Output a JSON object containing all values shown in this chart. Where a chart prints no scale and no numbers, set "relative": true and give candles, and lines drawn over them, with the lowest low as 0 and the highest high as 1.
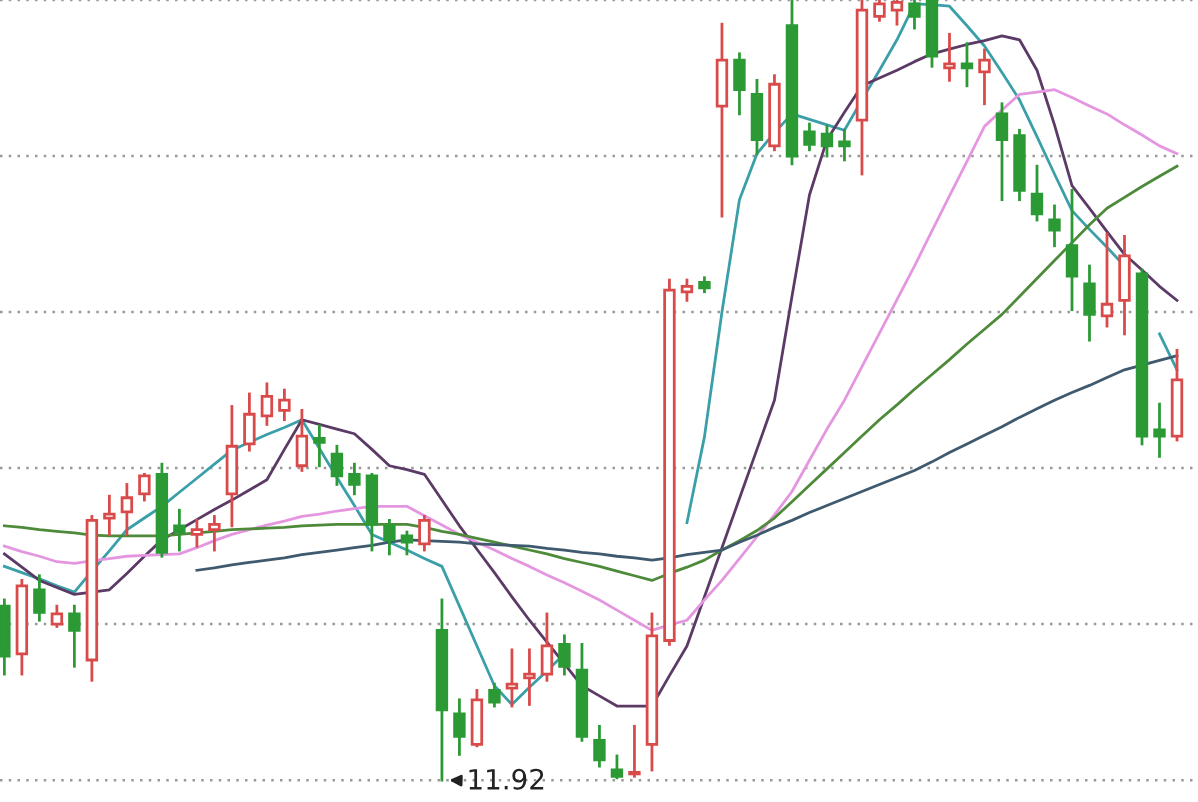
{
  "chart_data": {
    "type": "candlestick",
    "relative": true,
    "grid": "y",
    "legend": false,
    "categories": [
      null,
      null,
      null,
      null,
      null,
      null,
      null,
      null,
      null,
      null,
      null,
      null,
      null,
      null,
      null,
      null,
      null,
      null,
      null,
      null,
      null,
      null,
      null,
      null,
      null,
      null,
      null,
      null,
      null,
      null,
      null,
      null,
      null,
      null,
      null,
      null,
      null,
      null,
      null,
      null,
      null,
      null,
      null,
      null,
      null,
      null,
      null,
      null,
      null,
      null,
      null,
      null,
      null,
      null,
      null,
      null,
      null,
      null,
      null,
      null,
      null,
      null,
      null,
      null,
      null,
      null,
      null,
      null
    ],
    "ohlc": [
      [
        0.223,
        0.231,
        0.136,
        0.159
      ],
      [
        0.162,
        0.256,
        0.136,
        0.249
      ],
      [
        0.244,
        0.262,
        0.205,
        0.215
      ],
      [
        0.2,
        0.223,
        0.197,
        0.213
      ],
      [
        0.213,
        0.223,
        0.146,
        0.192
      ],
      [
        0.154,
        0.338,
        0.128,
        0.333
      ],
      [
        0.336,
        0.364,
        0.315,
        0.341
      ],
      [
        0.344,
        0.379,
        0.315,
        0.362
      ],
      [
        0.367,
        0.392,
        0.359,
        0.39
      ],
      [
        0.392,
        0.405,
        0.287,
        0.292
      ],
      [
        0.326,
        0.346,
        0.295,
        0.318
      ],
      [
        0.315,
        0.333,
        0.3,
        0.321
      ],
      [
        0.321,
        0.338,
        0.295,
        0.328
      ],
      [
        0.367,
        0.479,
        0.326,
        0.428
      ],
      [
        0.431,
        0.495,
        0.423,
        0.469
      ],
      [
        0.467,
        0.508,
        0.456,
        0.492
      ],
      [
        0.474,
        0.5,
        0.462,
        0.487
      ],
      [
        0.403,
        0.474,
        0.397,
        0.441
      ],
      [
        0.438,
        0.454,
        0.403,
        0.433
      ],
      [
        0.418,
        0.428,
        0.379,
        0.39
      ],
      [
        0.392,
        0.405,
        0.367,
        0.379
      ],
      [
        0.39,
        0.392,
        0.295,
        0.328
      ],
      [
        0.326,
        0.333,
        0.29,
        0.308
      ],
      [
        0.313,
        0.318,
        0.29,
        0.305
      ],
      [
        0.303,
        0.338,
        0.295,
        0.333
      ],
      [
        0.192,
        0.231,
        0.0,
        0.09
      ],
      [
        0.085,
        0.103,
        0.033,
        0.056
      ],
      [
        0.046,
        0.115,
        0.044,
        0.103
      ],
      [
        0.115,
        0.123,
        0.095,
        0.1
      ],
      [
        0.118,
        0.167,
        0.095,
        0.123
      ],
      [
        0.131,
        0.167,
        0.097,
        0.136
      ],
      [
        0.136,
        0.213,
        0.128,
        0.172
      ],
      [
        0.174,
        0.185,
        0.136,
        0.146
      ],
      [
        0.141,
        0.174,
        0.051,
        0.056
      ],
      [
        0.051,
        0.069,
        0.018,
        0.026
      ],
      [
        0.013,
        0.031,
        0.003,
        0.005
      ],
      [
        0.008,
        0.069,
        0.005,
        0.01
      ],
      [
        0.046,
        0.213,
        0.013,
        0.185
      ],
      [
        0.179,
        0.641,
        0.174,
        0.628
      ],
      [
        0.626,
        0.641,
        0.615,
        0.633
      ],
      [
        0.638,
        0.644,
        0.626,
        0.631
      ],
      [
        0.864,
        0.969,
        0.723,
        0.923
      ],
      [
        0.923,
        0.931,
        0.854,
        0.885
      ],
      [
        0.879,
        0.897,
        0.803,
        0.821
      ],
      [
        0.813,
        0.903,
        0.808,
        0.892
      ],
      [
        0.967,
        1.0,
        0.79,
        0.8
      ],
      [
        0.831,
        0.841,
        0.808,
        0.815
      ],
      [
        0.828,
        0.838,
        0.8,
        0.813
      ],
      [
        0.818,
        0.833,
        0.795,
        0.813
      ],
      [
        0.846,
        1.0,
        0.777,
        0.987
      ],
      [
        0.979,
        1.0,
        0.974,
        0.995
      ],
      [
        0.987,
        1.0,
        0.969,
        0.997
      ],
      [
        0.995,
        1.0,
        0.964,
        0.979
      ],
      [
        1.0,
        1.0,
        0.915,
        0.928
      ],
      [
        0.913,
        0.956,
        0.897,
        0.918
      ],
      [
        0.918,
        0.944,
        0.89,
        0.913
      ],
      [
        0.908,
        0.936,
        0.867,
        0.923
      ],
      [
        0.854,
        0.867,
        0.744,
        0.821
      ],
      [
        0.826,
        0.833,
        0.744,
        0.756
      ],
      [
        0.751,
        0.787,
        0.718,
        0.726
      ],
      [
        0.718,
        0.736,
        0.685,
        0.705
      ],
      [
        0.685,
        0.756,
        0.603,
        0.646
      ],
      [
        0.636,
        0.659,
        0.564,
        0.597
      ],
      [
        0.595,
        0.7,
        0.582,
        0.61
      ],
      [
        0.615,
        0.697,
        0.572,
        0.672
      ],
      [
        0.649,
        0.654,
        0.431,
        0.441
      ],
      [
        0.449,
        0.482,
        0.415,
        0.441
      ],
      [
        0.441,
        0.551,
        0.436,
        0.513
      ]
    ],
    "series": [
      {
        "type": "line",
        "color": "#3a9fa8",
        "values": [
          0.274,
          0.266,
          0.258,
          0.249,
          0.241,
          0.268,
          0.294,
          0.321,
          0.336,
          0.351,
          0.369,
          0.387,
          0.405,
          0.423,
          0.433,
          0.443,
          0.452,
          0.462,
          0.425,
          0.388,
          0.352,
          0.315,
          0.305,
          0.295,
          0.284,
          0.274,
          0.223,
          0.172,
          0.121,
          0.097,
          0.119,
          0.14,
          0.162,
          null,
          null,
          null,
          null,
          null,
          null,
          0.33,
          0.44,
          0.6,
          0.744,
          0.803,
          0.83,
          0.854,
          0.847,
          0.84,
          0.833,
          0.872,
          0.91,
          0.949,
          0.995,
          0.994,
          0.992,
          0.967,
          0.941,
          0.907,
          0.872,
          0.825,
          0.777,
          0.73,
          0.706,
          0.683,
          0.659,
          null,
          0.572,
          0.526
        ]
      },
      {
        "type": "line",
        "color": "#5b3a66",
        "values": [
          0.29,
          0.273,
          0.256,
          0.247,
          0.238,
          0.241,
          0.244,
          0.265,
          0.287,
          0.308,
          0.321,
          0.334,
          0.347,
          0.359,
          0.372,
          0.385,
          0.424,
          0.462,
          0.456,
          0.45,
          0.444,
          0.424,
          0.403,
          0.398,
          0.392,
          0.359,
          0.326,
          0.296,
          0.266,
          0.235,
          0.205,
          0.177,
          0.149,
          0.121,
          0.108,
          0.095,
          0.095,
          0.095,
          0.134,
          0.172,
          0.235,
          0.298,
          0.361,
          0.424,
          0.487,
          0.62,
          0.75,
          0.821,
          0.856,
          0.89,
          0.9,
          0.91,
          0.921,
          0.931,
          0.937,
          0.943,
          0.948,
          0.954,
          0.949,
          0.91,
          0.84,
          0.762,
          0.733,
          0.703,
          0.674,
          0.654,
          0.633,
          0.615
        ]
      },
      {
        "type": "line",
        "color": "#e596e0",
        "values": [
          0.3,
          0.293,
          0.287,
          0.28,
          0.278,
          0.281,
          0.284,
          0.287,
          0.288,
          0.289,
          0.29,
          0.298,
          0.307,
          0.315,
          0.321,
          0.327,
          0.332,
          0.338,
          0.341,
          0.345,
          0.348,
          0.351,
          0.351,
          0.351,
          0.339,
          0.327,
          0.315,
          0.305,
          0.295,
          0.284,
          0.274,
          0.263,
          0.253,
          0.242,
          0.231,
          0.218,
          0.205,
          0.192,
          0.199,
          0.205,
          0.231,
          0.256,
          0.284,
          0.312,
          0.34,
          0.37,
          0.41,
          0.45,
          0.487,
          0.53,
          0.573,
          0.616,
          0.659,
          0.704,
          0.749,
          0.793,
          0.838,
          0.859,
          0.879,
          0.882,
          0.885,
          0.875,
          0.864,
          0.854,
          0.84,
          0.827,
          0.813,
          0.803
        ]
      },
      {
        "type": "line",
        "color": "#4d8a3a",
        "values": [
          0.326,
          0.324,
          0.321,
          0.319,
          0.317,
          0.314,
          0.313,
          0.313,
          0.313,
          0.313,
          0.315,
          0.317,
          0.319,
          0.321,
          0.322,
          0.323,
          0.324,
          0.326,
          0.327,
          0.328,
          0.328,
          0.328,
          0.328,
          0.328,
          0.324,
          0.319,
          0.315,
          0.31,
          0.305,
          0.3,
          0.295,
          0.29,
          0.284,
          0.279,
          0.274,
          0.268,
          0.262,
          0.256,
          0.265,
          0.273,
          0.282,
          0.295,
          0.307,
          0.32,
          0.336,
          0.357,
          0.378,
          0.399,
          0.42,
          0.441,
          0.462,
          0.481,
          0.501,
          0.52,
          0.539,
          0.559,
          0.578,
          0.597,
          0.62,
          0.643,
          0.666,
          0.689,
          0.712,
          0.733,
          0.747,
          0.761,
          0.774,
          0.787
        ]
      },
      {
        "type": "line",
        "color": "#3f5a6e",
        "values": [
          null,
          null,
          null,
          null,
          null,
          null,
          null,
          null,
          null,
          null,
          null,
          0.269,
          0.272,
          0.276,
          0.279,
          0.282,
          0.285,
          0.289,
          0.292,
          0.295,
          0.298,
          0.301,
          0.305,
          0.308,
          0.307,
          0.306,
          0.305,
          0.303,
          0.302,
          0.301,
          0.3,
          0.297,
          0.295,
          0.292,
          0.29,
          0.287,
          0.285,
          0.282,
          0.285,
          0.289,
          0.292,
          0.295,
          0.305,
          0.314,
          0.324,
          0.333,
          0.343,
          0.352,
          0.361,
          0.37,
          0.379,
          0.388,
          0.397,
          0.408,
          0.42,
          0.431,
          0.442,
          0.453,
          0.465,
          0.476,
          0.487,
          0.497,
          0.506,
          0.516,
          0.526,
          0.532,
          0.538,
          0.544
        ]
      }
    ],
    "annotations": [
      "11.92"
    ]
  }
}
